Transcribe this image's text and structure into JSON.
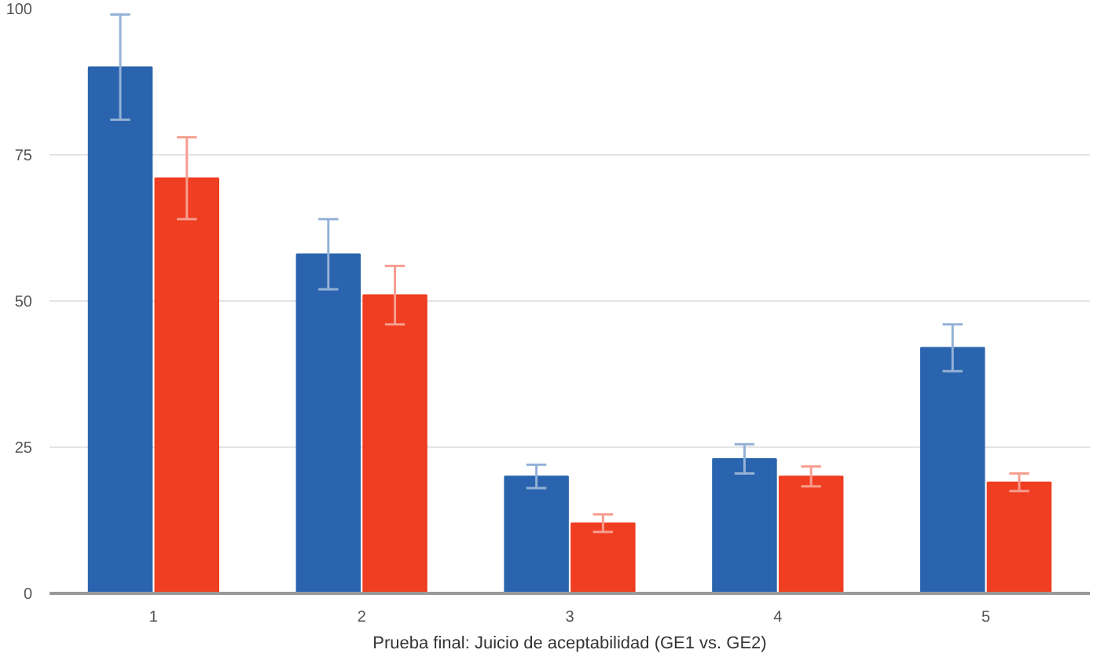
{
  "chart_data": {
    "type": "bar",
    "xlabel": "Prueba final: Juicio de aceptabilidad (GE1 vs. GE2)",
    "categories": [
      "1",
      "2",
      "3",
      "4",
      "5"
    ],
    "series": [
      {
        "color": "#2a64ae",
        "values": [
          90,
          58,
          20,
          23,
          42
        ],
        "errors": [
          9,
          6,
          2,
          2.5,
          4
        ]
      },
      {
        "color": "#ef3e22",
        "values": [
          71,
          51,
          12,
          20,
          19
        ],
        "errors": [
          7,
          5,
          1.5,
          1.7,
          1.5
        ]
      }
    ],
    "ylim": [
      0,
      100
    ],
    "yticks": [
      0,
      25,
      50,
      75,
      100
    ],
    "grid": "y"
  }
}
